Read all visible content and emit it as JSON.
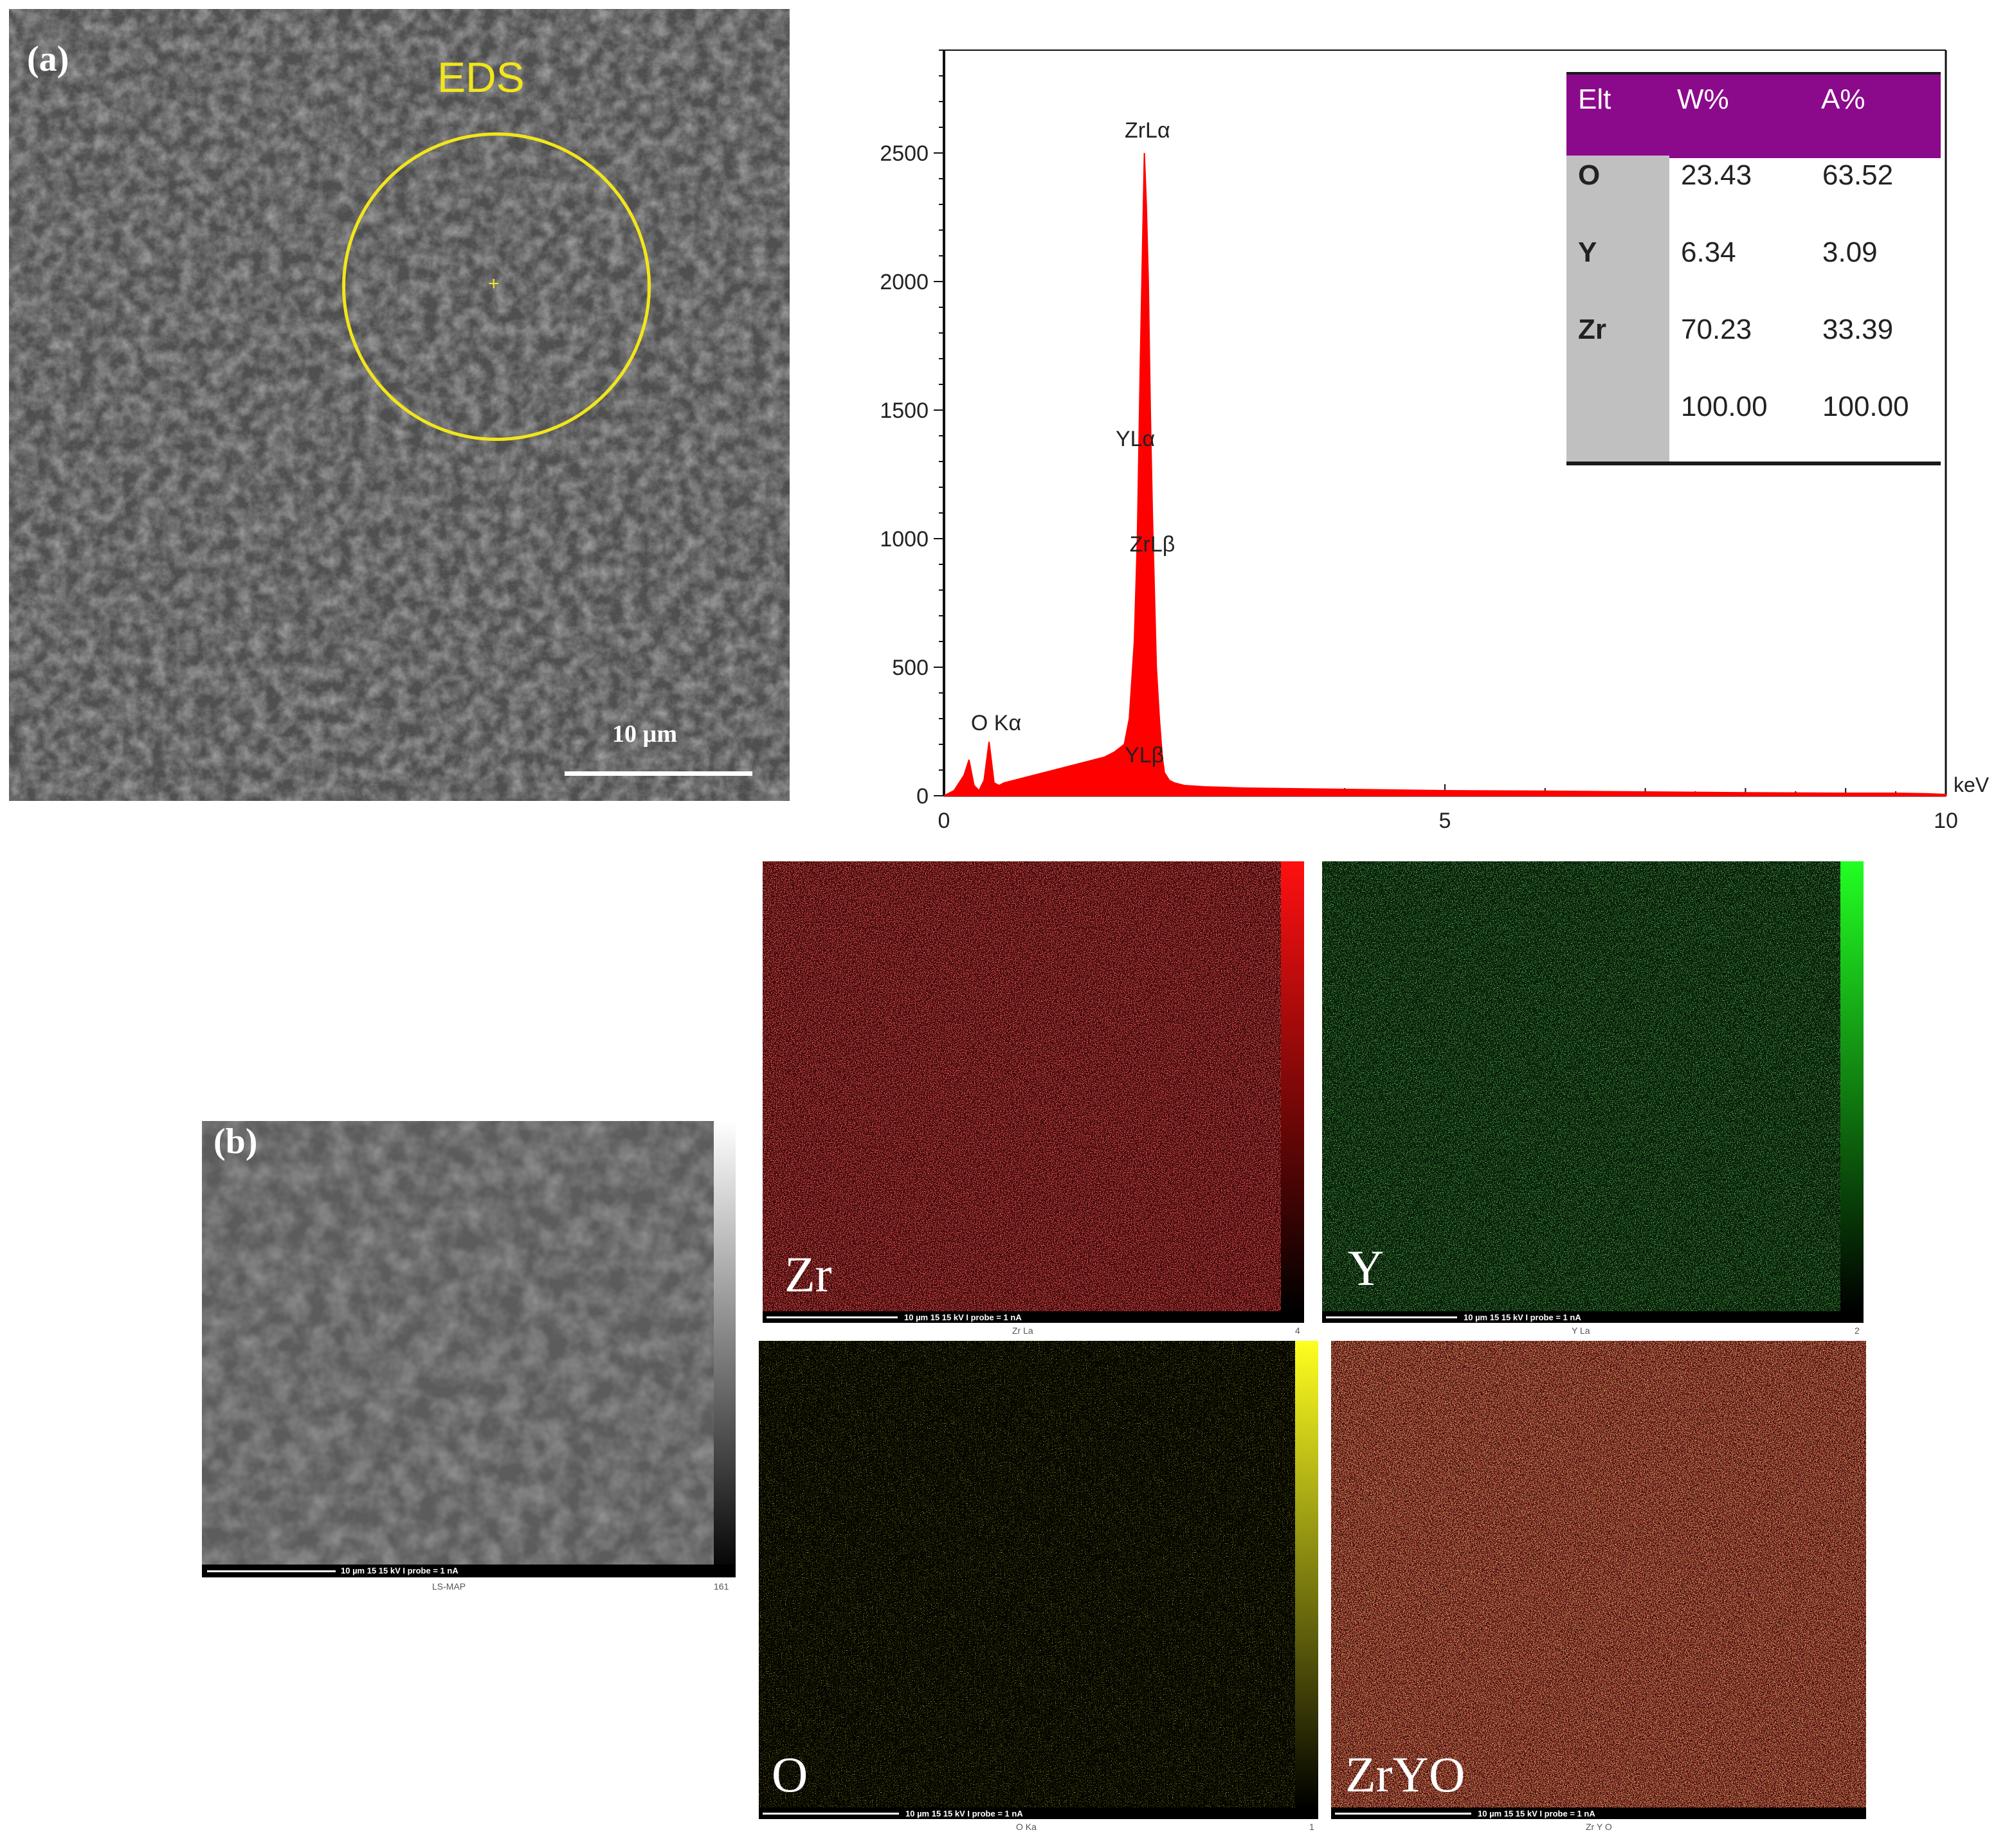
{
  "panel_a": {
    "label": "(a)",
    "eds_label": "EDS",
    "scale_label": "10 µm"
  },
  "panel_b": {
    "label": "(b)",
    "footer_text": "10 µm     15 15 kV     I probe = 1 nA",
    "caption": "LS-MAP",
    "max_value": "161"
  },
  "eds_table": {
    "headers": [
      "Elt",
      "W%",
      "A%"
    ],
    "rows": [
      {
        "element": "O",
        "w": "23.43",
        "a": "63.52"
      },
      {
        "element": "Y",
        "w": "6.34",
        "a": "3.09"
      },
      {
        "element": "Zr",
        "w": "70.23",
        "a": "33.39"
      },
      {
        "element": "",
        "w": "100.00",
        "a": "100.00"
      }
    ],
    "header_color": "#8b0a8b"
  },
  "maps": [
    {
      "label": "Zr",
      "caption": "Zr La",
      "max": "4",
      "footer": "10 µm     15 15 kV     I probe = 1 nA",
      "color": "#ff2020"
    },
    {
      "label": "Y",
      "caption": "Y La",
      "max": "2",
      "footer": "10 µm     15 15 kV     I probe = 1 nA",
      "color": "#33ee33"
    },
    {
      "label": "O",
      "caption": "O Ka",
      "max": "1",
      "footer": "10 µm     15 15 kV     I probe = 1 nA",
      "color": "#f0f000"
    },
    {
      "label": "ZrYO",
      "caption": "Zr Y  O",
      "max": "",
      "footer": "10 µm     15 15 kV     I probe = 1 nA",
      "color": "#cc2020"
    }
  ],
  "chart_data": {
    "type": "line",
    "title": "",
    "xlabel": "keV",
    "ylabel": "",
    "xlim": [
      0,
      10
    ],
    "ylim": [
      0,
      2900
    ],
    "x_ticks": [
      0,
      5,
      10
    ],
    "y_ticks": [
      0,
      500,
      1000,
      1500,
      2000,
      2500
    ],
    "color": "#ff0000",
    "series": [
      {
        "x": [
          0,
          0.1,
          0.2,
          0.25,
          0.3,
          0.35,
          0.4,
          0.45,
          0.5,
          0.55,
          0.6,
          0.7,
          0.8,
          1.0,
          1.2,
          1.4,
          1.6,
          1.7,
          1.8,
          1.85,
          1.9,
          1.93,
          1.96,
          2.0,
          2.02,
          2.04,
          2.06,
          2.08,
          2.1,
          2.12,
          2.15,
          2.18,
          2.2,
          2.25,
          2.3,
          2.4,
          2.6,
          3.0,
          4.0,
          5.0,
          6.0,
          7.0,
          8.0,
          9.0,
          9.5,
          9.8,
          10.0
        ],
        "y": [
          0,
          20,
          80,
          140,
          40,
          20,
          60,
          210,
          50,
          40,
          50,
          60,
          70,
          90,
          110,
          130,
          150,
          170,
          200,
          300,
          600,
          1000,
          1700,
          2500,
          2300,
          2000,
          1500,
          1100,
          800,
          500,
          300,
          150,
          90,
          60,
          50,
          40,
          35,
          30,
          25,
          20,
          18,
          15,
          12,
          10,
          10,
          8,
          5
        ]
      }
    ],
    "annotations": [
      {
        "text": "ZrLα",
        "x": 2.03,
        "y": 2560
      },
      {
        "text": "YLα",
        "x": 1.91,
        "y": 1360
      },
      {
        "text": "ZrLβ",
        "x": 2.08,
        "y": 950
      },
      {
        "text": "O Kα",
        "x": 0.52,
        "y": 255
      },
      {
        "text": "YLβ",
        "x": 2.0,
        "y": 130
      }
    ]
  }
}
